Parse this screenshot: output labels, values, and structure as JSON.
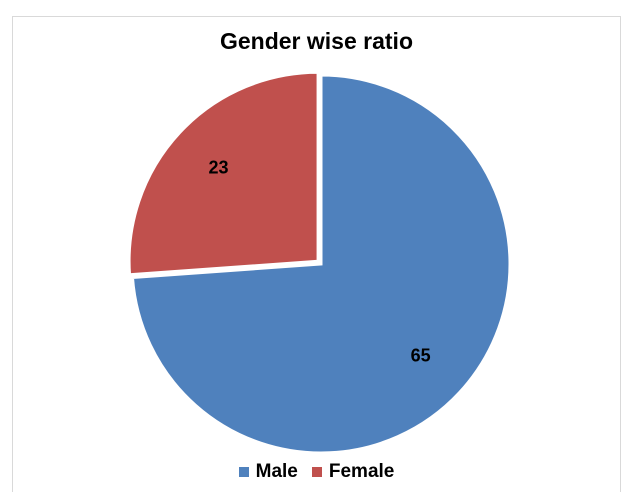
{
  "chart_data": {
    "type": "pie",
    "title": "Gender wise ratio",
    "categories": [
      "Male",
      "Female"
    ],
    "values": [
      65,
      23
    ],
    "colors": [
      "#4f81bd",
      "#c0504d"
    ],
    "legend_position": "bottom",
    "data_labels": [
      "65",
      "23"
    ]
  }
}
